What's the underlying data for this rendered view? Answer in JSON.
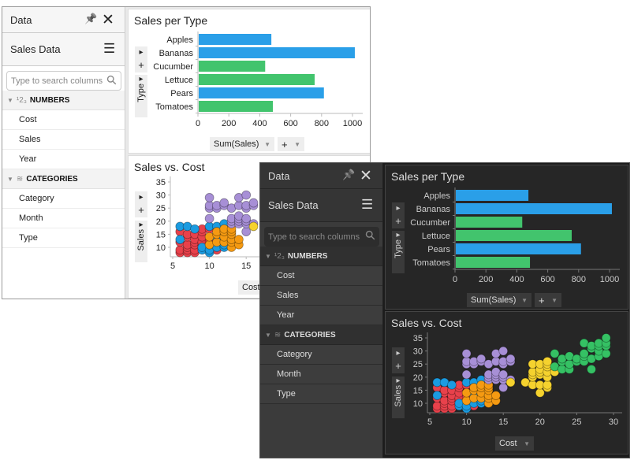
{
  "sidebar": {
    "title": "Data",
    "pin_icon": "pin-icon",
    "close_icon": "close-icon",
    "dataset": "Sales Data",
    "menu_icon": "hamburger-menu-icon",
    "search_placeholder": "Type to search columns",
    "sections": [
      {
        "label": "NUMBERS",
        "icon": "numbers-icon",
        "items": [
          "Cost",
          "Sales",
          "Year"
        ]
      },
      {
        "label": "CATEGORIES",
        "icon": "layers-icon",
        "items": [
          "Category",
          "Month",
          "Type"
        ]
      }
    ]
  },
  "bar_chart": {
    "title": "Sales per Type",
    "y_axis_label": "Type",
    "x_measure": "Sum(Sales)",
    "add": "+",
    "chart_data": {
      "type": "bar",
      "orientation": "horizontal",
      "categories": [
        "Apples",
        "Bananas",
        "Cucumber",
        "Lettuce",
        "Pears",
        "Tomatoes"
      ],
      "values": [
        470,
        1010,
        430,
        750,
        810,
        480
      ],
      "colors": [
        "#2a9fe8",
        "#2a9fe8",
        "#42c46d",
        "#42c46d",
        "#2a9fe8",
        "#42c46d"
      ],
      "xlim": [
        0,
        1000
      ],
      "xticks": [
        0,
        200,
        400,
        600,
        800,
        1000
      ]
    }
  },
  "scatter_chart": {
    "title": "Sales vs. Cost",
    "y_axis_label": "Sales",
    "x_axis_label": "Cost",
    "add": "+",
    "chart_data": {
      "type": "scatter",
      "xlim": [
        5,
        30
      ],
      "ylim": [
        7,
        36
      ],
      "xticks": [
        5,
        10,
        15,
        20,
        25,
        30
      ],
      "yticks": [
        10,
        15,
        20,
        25,
        30,
        35
      ],
      "series": [
        {
          "color": "#e8414b",
          "points": [
            [
              6,
              8
            ],
            [
              6,
              9
            ],
            [
              6,
              12
            ],
            [
              6,
              16
            ],
            [
              7,
              8
            ],
            [
              7,
              9
            ],
            [
              7,
              10
            ],
            [
              7,
              11
            ],
            [
              7,
              14
            ],
            [
              7,
              15
            ],
            [
              8,
              8
            ],
            [
              8,
              9
            ],
            [
              8,
              11
            ],
            [
              8,
              12
            ],
            [
              8,
              13
            ],
            [
              8,
              15
            ],
            [
              9,
              11
            ],
            [
              9,
              12
            ],
            [
              9,
              14
            ],
            [
              9,
              16
            ],
            [
              9,
              17
            ],
            [
              10,
              12
            ],
            [
              10,
              17
            ],
            [
              11,
              9
            ]
          ]
        },
        {
          "color": "#1b9be0",
          "points": [
            [
              6,
              13
            ],
            [
              6,
              18
            ],
            [
              7,
              18
            ],
            [
              8,
              17
            ],
            [
              9,
              9
            ],
            [
              9,
              10
            ],
            [
              10,
              8
            ],
            [
              10,
              9
            ],
            [
              10,
              18
            ],
            [
              11,
              10
            ],
            [
              11,
              13
            ],
            [
              11,
              18
            ],
            [
              12,
              10
            ],
            [
              12,
              11
            ],
            [
              12,
              19
            ]
          ]
        },
        {
          "color": "#f59a12",
          "points": [
            [
              10,
              11
            ],
            [
              10,
              14
            ],
            [
              11,
              12
            ],
            [
              11,
              15
            ],
            [
              11,
              16
            ],
            [
              12,
              12
            ],
            [
              12,
              14
            ],
            [
              12,
              16
            ],
            [
              12,
              17
            ],
            [
              13,
              10
            ],
            [
              13,
              12
            ],
            [
              13,
              13
            ],
            [
              13,
              15
            ],
            [
              13,
              16
            ],
            [
              13,
              17
            ],
            [
              14,
              11
            ],
            [
              14,
              13
            ]
          ]
        },
        {
          "color": "#a78fd6",
          "points": [
            [
              10,
              21
            ],
            [
              10,
              25
            ],
            [
              10,
              26
            ],
            [
              10,
              29
            ],
            [
              11,
              25
            ],
            [
              11,
              26
            ],
            [
              12,
              26
            ],
            [
              12,
              27
            ],
            [
              13,
              19
            ],
            [
              13,
              20
            ],
            [
              13,
              21
            ],
            [
              13,
              25
            ],
            [
              14,
              19
            ],
            [
              14,
              20
            ],
            [
              14,
              21
            ],
            [
              14,
              22
            ],
            [
              14,
              26
            ],
            [
              14,
              29
            ],
            [
              15,
              16
            ],
            [
              15,
              19
            ],
            [
              15,
              20
            ],
            [
              15,
              21
            ],
            [
              15,
              25
            ],
            [
              15,
              26
            ],
            [
              15,
              30
            ],
            [
              16,
              19
            ],
            [
              16,
              26
            ],
            [
              16,
              27
            ]
          ]
        },
        {
          "color": "#f5d22e",
          "points": [
            [
              16,
              18
            ],
            [
              18,
              18
            ],
            [
              19,
              17
            ],
            [
              19,
              20
            ],
            [
              19,
              21
            ],
            [
              19,
              22
            ],
            [
              19,
              25
            ],
            [
              20,
              14
            ],
            [
              20,
              17
            ],
            [
              20,
              21
            ],
            [
              20,
              22
            ],
            [
              20,
              23
            ],
            [
              20,
              25
            ],
            [
              21,
              16
            ],
            [
              21,
              17
            ],
            [
              21,
              20
            ],
            [
              21,
              22
            ],
            [
              21,
              24
            ],
            [
              21,
              25
            ],
            [
              21,
              26
            ],
            [
              22,
              22
            ]
          ]
        },
        {
          "color": "#35c164",
          "points": [
            [
              22,
              24
            ],
            [
              22,
              29
            ],
            [
              23,
              23
            ],
            [
              23,
              26
            ],
            [
              23,
              27
            ],
            [
              24,
              23
            ],
            [
              24,
              25
            ],
            [
              24,
              28
            ],
            [
              25,
              26
            ],
            [
              25,
              27
            ],
            [
              26,
              26
            ],
            [
              26,
              28
            ],
            [
              26,
              29
            ],
            [
              26,
              33
            ],
            [
              27,
              23
            ],
            [
              27,
              27
            ],
            [
              27,
              31
            ],
            [
              27,
              32
            ],
            [
              28,
              28
            ],
            [
              28,
              30
            ],
            [
              28,
              32
            ],
            [
              28,
              33
            ],
            [
              29,
              29
            ],
            [
              29,
              32
            ],
            [
              29,
              33
            ],
            [
              29,
              35
            ]
          ]
        }
      ]
    }
  },
  "themes": {
    "light": {
      "name": "light",
      "axis": "#bbb",
      "text": "#222"
    },
    "dark": {
      "name": "dark",
      "axis": "#777",
      "text": "#ccc"
    }
  }
}
